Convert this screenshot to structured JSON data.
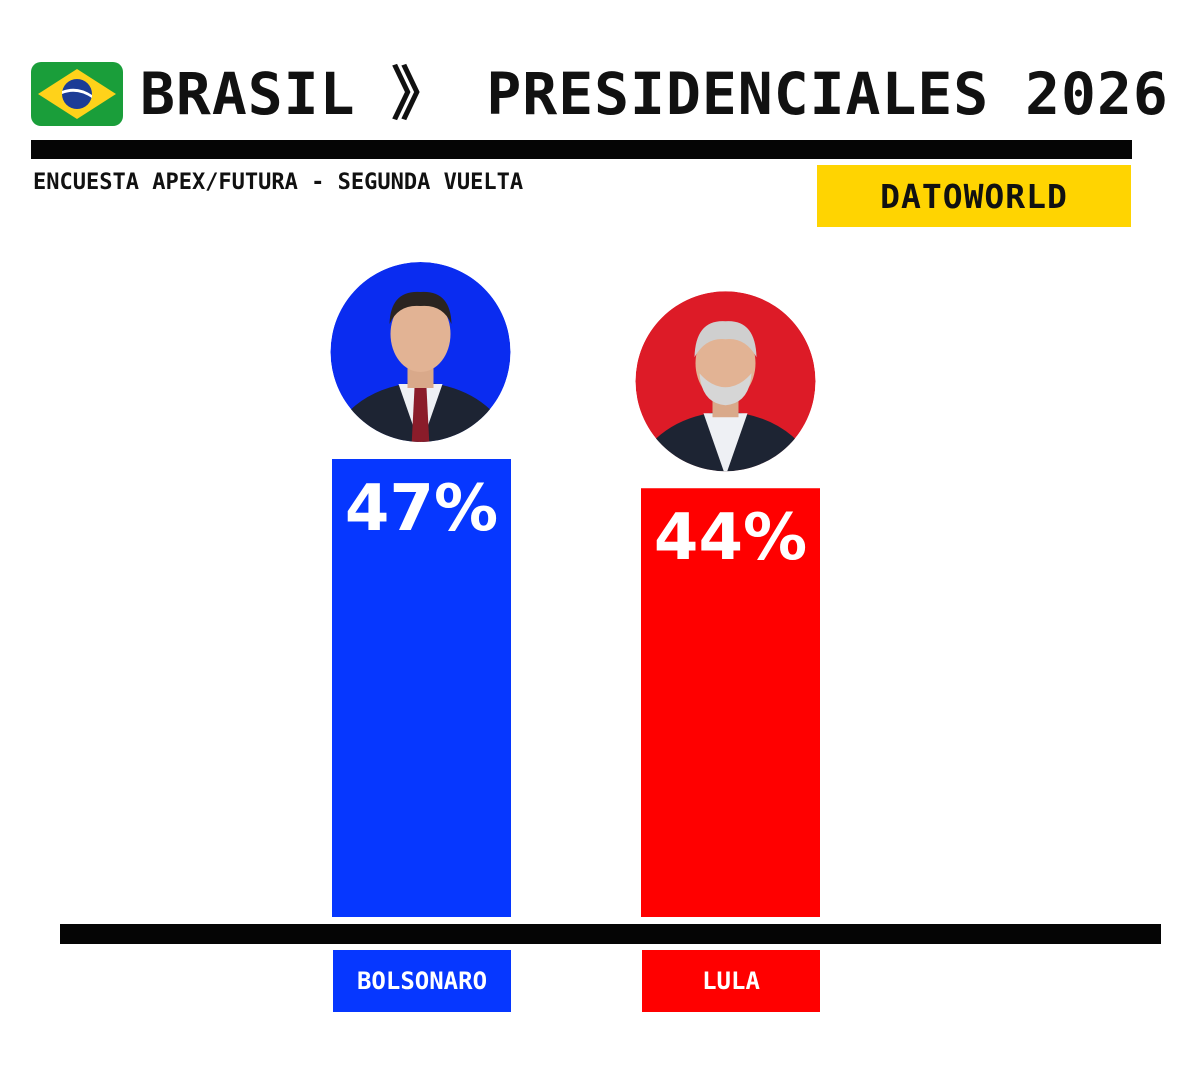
{
  "header": {
    "title": "BRASIL 》 PRESIDENCIALES 2026",
    "subtitle": "ENCUESTA APEX/FUTURA - SEGUNDA VUELTA",
    "brand": "DATOWORLD",
    "flag_icon": "brazil-flag-icon",
    "brand_color": "#ffd401"
  },
  "chart_data": {
    "type": "bar",
    "title": "BRASIL 》 PRESIDENCIALES 2026",
    "subtitle": "ENCUESTA APEX/FUTURA - SEGUNDA VUELTA",
    "categories": [
      "BOLSONARO",
      "LULA"
    ],
    "values": [
      47,
      44
    ],
    "value_labels": [
      "47%",
      "44%"
    ],
    "colors": [
      "#0637ff",
      "#ff0000"
    ],
    "photo_colors": [
      "#0a2cf0",
      "#dd1b27"
    ],
    "ylim": [
      0,
      47
    ],
    "grid": false,
    "legend": "none"
  }
}
